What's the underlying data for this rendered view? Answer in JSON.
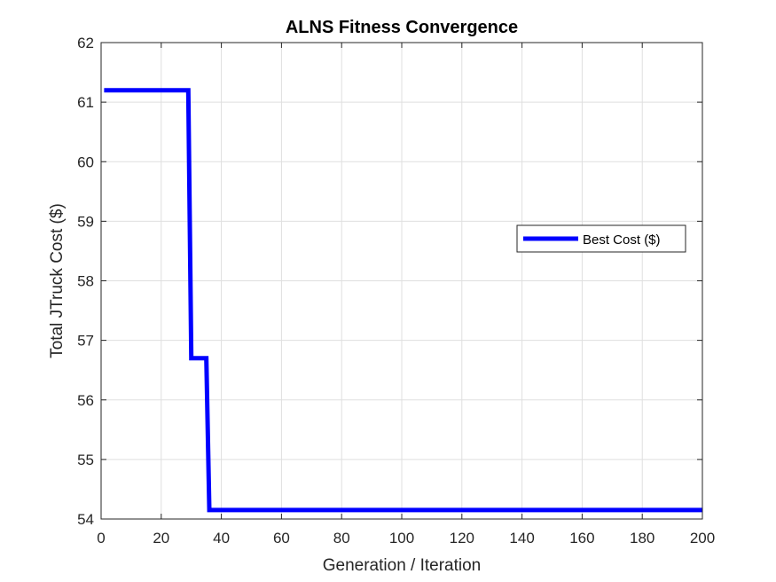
{
  "chart_data": {
    "type": "line",
    "title": "ALNS Fitness Convergence",
    "xlabel": "Generation / Iteration",
    "ylabel": "Total JTruck Cost ($)",
    "xlim": [
      0,
      200
    ],
    "ylim": [
      54,
      62
    ],
    "xticks": [
      "0",
      "20",
      "40",
      "60",
      "80",
      "100",
      "120",
      "140",
      "160",
      "180",
      "200"
    ],
    "yticks": [
      "54",
      "55",
      "56",
      "57",
      "58",
      "59",
      "60",
      "61",
      "62"
    ],
    "grid": true,
    "legend_position": "right",
    "series": [
      {
        "name": "Best Cost ($)",
        "color": "#0000ff",
        "x": [
          1,
          29,
          30,
          35,
          36,
          200
        ],
        "y": [
          61.2,
          61.2,
          56.7,
          56.7,
          54.15,
          54.15
        ]
      }
    ]
  }
}
